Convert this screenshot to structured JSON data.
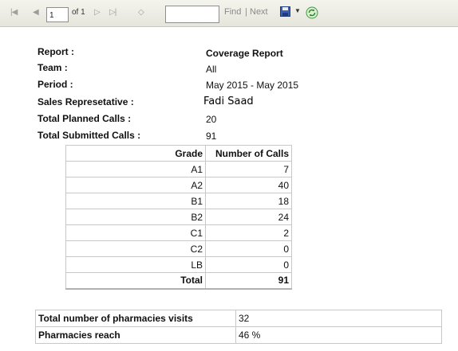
{
  "toolbar": {
    "page_value": "1",
    "of_label": "of 1",
    "find_label": "Find",
    "separator": "|",
    "next_label": "Next",
    "icons": [
      "first-page-icon",
      "previous-page-icon",
      "next-page-icon",
      "last-page-icon",
      "back-icon",
      "export-icon",
      "refresh-icon"
    ]
  },
  "info": {
    "report_label": "Report :",
    "report_value": "Coverage Report",
    "team_label": "Team :",
    "team_value": "All",
    "period_label": "Period :",
    "period_value": "May 2015 - May 2015",
    "rep_label": "Sales Represetative :",
    "rep_value": "Fadi Saad",
    "planned_label": "Total Planned Calls :",
    "planned_value": "20",
    "submitted_label": "Total Submitted Calls :",
    "submitted_value": "91"
  },
  "grade_table": {
    "headers": [
      "Grade",
      "Number of Calls"
    ],
    "rows": [
      {
        "grade": "A1",
        "calls": "7"
      },
      {
        "grade": "A2",
        "calls": "40"
      },
      {
        "grade": "B1",
        "calls": "18"
      },
      {
        "grade": "B2",
        "calls": "24"
      },
      {
        "grade": "C1",
        "calls": "2"
      },
      {
        "grade": "C2",
        "calls": "0"
      },
      {
        "grade": "LB",
        "calls": "0"
      }
    ],
    "total_label": "Total",
    "total_value": "91"
  },
  "pharmacies": {
    "visits_label": "Total number of pharmacies visits",
    "visits_value": "32",
    "reach_label": "Pharmacies reach",
    "reach_value": "46 %"
  }
}
